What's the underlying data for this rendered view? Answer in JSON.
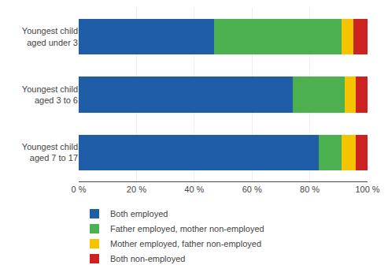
{
  "chart_data": {
    "type": "bar",
    "orientation": "horizontal",
    "stacked": true,
    "categories": [
      "Youngest child\naged under 3",
      "Youngest child\naged 3 to 6",
      "Youngest child\naged 7 to 17"
    ],
    "series": [
      {
        "name": "Both employed",
        "color": "#1f5da6",
        "values": [
          47,
          74,
          83
        ]
      },
      {
        "name": "Father employed, mother non-employed",
        "color": "#4caf50",
        "values": [
          44,
          18,
          8
        ]
      },
      {
        "name": "Mother employed, father non-employed",
        "color": "#f5c400",
        "values": [
          4,
          4,
          5
        ]
      },
      {
        "name": "Both non-employed",
        "color": "#cc2222",
        "values": [
          5,
          4,
          4
        ]
      }
    ],
    "xlim": [
      0,
      100
    ],
    "xticks": [
      {
        "value": 0,
        "label": "0 %"
      },
      {
        "value": 20,
        "label": "20 %"
      },
      {
        "value": 40,
        "label": "40 %"
      },
      {
        "value": 60,
        "label": "60 %"
      },
      {
        "value": 80,
        "label": "80 %"
      },
      {
        "value": 100,
        "label": "100 %"
      }
    ],
    "grid": true,
    "legend": "bottom"
  }
}
